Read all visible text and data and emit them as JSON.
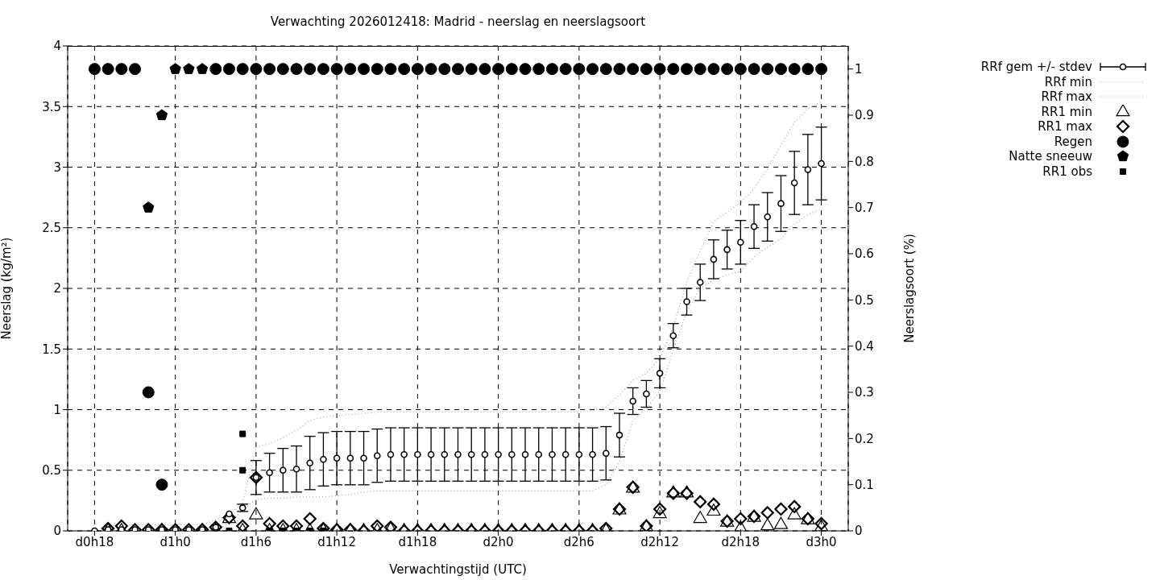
{
  "chart_data": {
    "type": "scatter",
    "title": "Verwachting 2026012418: Madrid - neerslag en neerslagsoort",
    "xlabel": "Verwachtingstijd (UTC)",
    "ylabel": "Neerslag (kg/m²)",
    "y2label": "Neerslagsoort (%)",
    "categories": [
      "d0h18",
      null,
      null,
      null,
      null,
      null,
      "d1h0",
      null,
      null,
      null,
      null,
      null,
      "d1h6",
      null,
      null,
      null,
      null,
      null,
      "d1h12",
      null,
      null,
      null,
      null,
      null,
      "d1h18",
      null,
      null,
      null,
      null,
      null,
      "d2h0",
      null,
      null,
      null,
      null,
      null,
      "d2h6",
      null,
      null,
      null,
      null,
      null,
      "d2h12",
      null,
      null,
      null,
      null,
      null,
      "d2h18",
      null,
      null,
      null,
      null,
      null,
      "d3h0"
    ],
    "ylim": [
      0,
      4
    ],
    "yticks": [
      0,
      0.5,
      1,
      1.5,
      2,
      2.5,
      3,
      3.5,
      4
    ],
    "y2lim": [
      0,
      1.05
    ],
    "y2ticks": [
      0,
      0.1,
      0.2,
      0.3,
      0.4,
      0.5,
      0.6,
      0.7,
      0.8,
      0.9,
      1
    ],
    "grid": true,
    "legend": "top right",
    "series": [
      {
        "name": "RRf gem +/- stdev",
        "marker": "circle",
        "color": "#000000",
        "values": [
          0,
          0.01,
          0.01,
          0.01,
          0.01,
          0.01,
          0.01,
          0.01,
          0.01,
          0.03,
          0.14,
          0.19,
          0.44,
          0.48,
          0.5,
          0.51,
          0.56,
          0.59,
          0.6,
          0.6,
          0.6,
          0.62,
          0.63,
          0.63,
          0.63,
          0.63,
          0.63,
          0.63,
          0.63,
          0.63,
          0.63,
          0.63,
          0.63,
          0.63,
          0.63,
          0.63,
          0.63,
          0.63,
          0.64,
          0.79,
          1.07,
          1.13,
          1.3,
          1.61,
          1.89,
          2.05,
          2.24,
          2.32,
          2.38,
          2.51,
          2.59,
          2.7,
          2.87,
          2.98,
          3.03
        ],
        "errors": [
          null,
          null,
          null,
          null,
          null,
          null,
          null,
          null,
          null,
          null,
          null,
          0.03,
          0.14,
          0.16,
          0.18,
          0.19,
          0.22,
          0.22,
          0.22,
          0.22,
          0.22,
          0.22,
          0.22,
          0.22,
          0.22,
          0.22,
          0.22,
          0.22,
          0.22,
          0.22,
          0.22,
          0.22,
          0.22,
          0.22,
          0.22,
          0.22,
          0.22,
          0.22,
          0.22,
          0.18,
          0.11,
          0.11,
          0.12,
          0.1,
          0.11,
          0.15,
          0.16,
          0.16,
          0.18,
          0.18,
          0.2,
          0.23,
          0.26,
          0.29,
          0.3
        ]
      },
      {
        "name": "RRf min",
        "type": "line",
        "line_style": "dotted",
        "marker": "none",
        "color": "#a0a0a0",
        "values": [
          0,
          0,
          0,
          0,
          0,
          0,
          0,
          0,
          0,
          0.01,
          0.06,
          0.17,
          0.26,
          0.27,
          0.27,
          0.28,
          0.28,
          0.28,
          0.29,
          0.3,
          0.32,
          0.33,
          0.33,
          0.33,
          0.33,
          0.33,
          0.33,
          0.33,
          0.33,
          0.33,
          0.33,
          0.33,
          0.33,
          0.33,
          0.33,
          0.33,
          0.33,
          0.33,
          0.38,
          0.57,
          0.91,
          1.01,
          1.15,
          1.49,
          1.81,
          2.0,
          2.07,
          2.11,
          2.14,
          2.26,
          2.34,
          2.41,
          2.53,
          2.61,
          2.65
        ]
      },
      {
        "name": "RRf max",
        "type": "line",
        "line_style": "dotted",
        "marker": "none",
        "color": "#a0a0a0",
        "values": [
          0,
          0.04,
          0.05,
          0.05,
          0.05,
          0.05,
          0.05,
          0.05,
          0.05,
          0.09,
          0.13,
          0.23,
          0.69,
          0.72,
          0.77,
          0.83,
          0.91,
          0.94,
          0.95,
          0.96,
          0.97,
          0.98,
          0.98,
          0.98,
          0.98,
          0.98,
          0.98,
          0.98,
          0.98,
          0.98,
          0.98,
          0.98,
          0.98,
          0.98,
          0.98,
          0.98,
          0.98,
          0.99,
          1.02,
          1.12,
          1.24,
          1.3,
          1.42,
          1.68,
          2.05,
          2.31,
          2.55,
          2.63,
          2.71,
          2.82,
          2.99,
          3.18,
          3.37,
          3.48,
          3.54
        ]
      },
      {
        "name": "RR1 min",
        "marker": "triangle",
        "color": "#000000",
        "values": [
          null,
          0,
          0,
          null,
          null,
          0,
          null,
          null,
          0,
          0,
          0.1,
          0,
          0.13,
          0,
          0,
          0,
          0,
          0,
          0,
          0,
          0,
          0,
          0.01,
          0,
          0,
          0,
          0,
          0,
          0,
          0,
          0,
          0,
          0,
          0,
          0,
          0,
          0,
          0,
          0,
          0.17,
          0.35,
          0.03,
          0.14,
          0.31,
          0.31,
          0.1,
          0.16,
          0.07,
          0.02,
          0.11,
          0.04,
          0.05,
          0.13,
          0.09,
          0.03
        ]
      },
      {
        "name": "RR1 max",
        "marker": "diamond",
        "color": "#000000",
        "values": [
          null,
          0.02,
          0.04,
          0.01,
          0.01,
          0.01,
          0.01,
          0.01,
          0.01,
          0.03,
          0.11,
          0.04,
          0.44,
          0.06,
          0.04,
          0.04,
          0.1,
          0.02,
          0.01,
          0.01,
          0,
          0.04,
          0.03,
          0,
          0,
          0,
          0,
          0,
          0,
          0,
          0,
          0,
          0,
          0,
          0,
          0,
          0,
          0,
          0.02,
          0.18,
          0.36,
          0.04,
          0.18,
          0.31,
          0.31,
          0.24,
          0.22,
          0.08,
          0.1,
          0.12,
          0.15,
          0.18,
          0.2,
          0.1,
          0.06
        ]
      },
      {
        "name": "Regen",
        "marker": "circle",
        "color": "#000000",
        "axis": "y2",
        "values": [
          1,
          1,
          1,
          1,
          0.3,
          0.1,
          null,
          null,
          null,
          1,
          1,
          1,
          1,
          1,
          1,
          1,
          1,
          1,
          1,
          1,
          1,
          1,
          1,
          1,
          1,
          1,
          1,
          1,
          1,
          1,
          1,
          1,
          1,
          1,
          1,
          1,
          1,
          1,
          1,
          1,
          1,
          1,
          1,
          1,
          1,
          1,
          1,
          1,
          1,
          1,
          1,
          1,
          1,
          1,
          1
        ]
      },
      {
        "name": "Natte sneeuw",
        "color": "#000000",
        "axis": "y2",
        "values": [
          null,
          null,
          null,
          null,
          0.7,
          0.9,
          1,
          1,
          1,
          null,
          null,
          null,
          null,
          null,
          null,
          null,
          null,
          null,
          null,
          null,
          null,
          null,
          null,
          null,
          null,
          null,
          null,
          null,
          null,
          null,
          null,
          null,
          null,
          null,
          null,
          null,
          null,
          null,
          null,
          null,
          null,
          null,
          null,
          null,
          null,
          null,
          null,
          null,
          null,
          null,
          null,
          null,
          null,
          null,
          null
        ]
      },
      {
        "name": "RR1 obs",
        "marker": "square",
        "color": "#000000",
        "values": [
          null,
          null,
          null,
          null,
          null,
          null,
          null,
          null,
          null,
          null,
          0,
          0.8,
          null,
          0,
          0,
          0,
          0,
          0,
          null,
          null,
          null,
          null,
          null,
          null,
          null,
          null,
          null,
          null,
          null,
          null,
          null,
          null,
          null,
          null,
          null,
          null,
          null,
          null,
          null,
          null,
          null,
          null,
          null,
          null,
          null,
          null,
          null,
          null,
          null,
          null,
          null,
          null,
          null,
          null,
          null
        ]
      },
      {
        "marker": "square",
        "color": "#000000",
        "values": [
          null,
          null,
          null,
          null,
          null,
          null,
          null,
          null,
          null,
          null,
          null,
          0.5,
          null,
          null,
          null,
          null,
          null,
          null,
          null,
          null,
          null,
          null,
          null,
          null,
          null,
          null,
          null,
          null,
          null,
          null,
          null,
          null,
          null,
          null,
          null,
          null,
          null,
          null,
          null,
          null,
          null,
          null,
          null,
          null,
          null,
          null,
          null,
          null,
          null,
          null,
          null,
          null,
          null,
          null,
          null
        ]
      }
    ]
  }
}
